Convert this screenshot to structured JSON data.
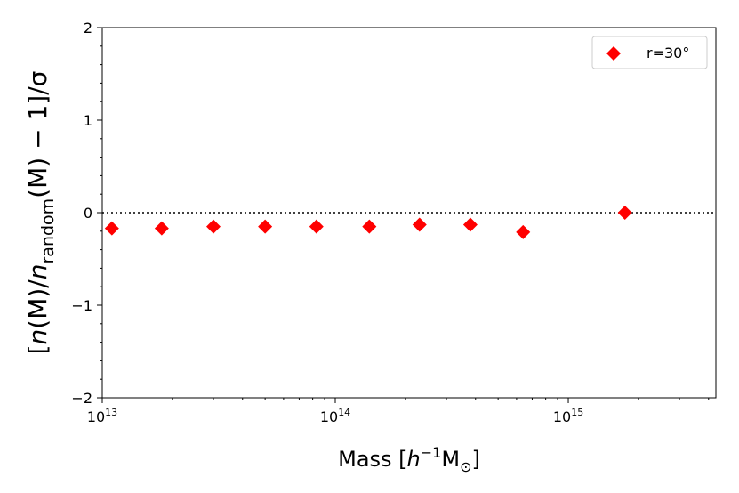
{
  "chart_data": {
    "type": "scatter",
    "title": "",
    "xlabel": {
      "main": "Mass [",
      "h": "h",
      "exp": "−1",
      "m": "M",
      "sun": "⊙",
      "close": "]"
    },
    "ylabel": "[n(M)/n_random(M) − 1]/σ",
    "ylabel_parts": {
      "open": "[",
      "n1": "n",
      "m1": "(M)/",
      "n2": "n",
      "sub": "random",
      "m2": "(M) − 1]/σ"
    },
    "x_scale": "log",
    "xlim": [
      10000000000000.0,
      4300000000000000.0
    ],
    "ylim": [
      -2,
      2
    ],
    "x_ticks": [
      {
        "value": 10000000000000.0,
        "base": "10",
        "exp": "13"
      },
      {
        "value": 100000000000000.0,
        "base": "10",
        "exp": "14"
      },
      {
        "value": 1000000000000000.0,
        "base": "10",
        "exp": "15"
      }
    ],
    "y_ticks": [
      {
        "value": 2,
        "label": "2"
      },
      {
        "value": 1,
        "label": "1"
      },
      {
        "value": 0,
        "label": "0"
      },
      {
        "value": -1,
        "label": "−1"
      },
      {
        "value": -2,
        "label": "−2"
      }
    ],
    "reference_line": {
      "y": 0,
      "style": "dotted",
      "color": "#000000"
    },
    "grid": false,
    "legend": {
      "placement": "top-right"
    },
    "series": [
      {
        "name": "r=30°",
        "marker": "diamond",
        "color": "#ff0000",
        "points": [
          {
            "x": 11000000000000.0,
            "y": -0.17
          },
          {
            "x": 18000000000000.0,
            "y": -0.17
          },
          {
            "x": 30000000000000.0,
            "y": -0.15
          },
          {
            "x": 50000000000000.0,
            "y": -0.15
          },
          {
            "x": 83000000000000.0,
            "y": -0.15
          },
          {
            "x": 140000000000000.0,
            "y": -0.15
          },
          {
            "x": 230000000000000.0,
            "y": -0.13
          },
          {
            "x": 380000000000000.0,
            "y": -0.13
          },
          {
            "x": 640000000000000.0,
            "y": -0.21
          },
          {
            "x": 1750000000000000.0,
            "y": 0.0
          }
        ]
      }
    ]
  }
}
